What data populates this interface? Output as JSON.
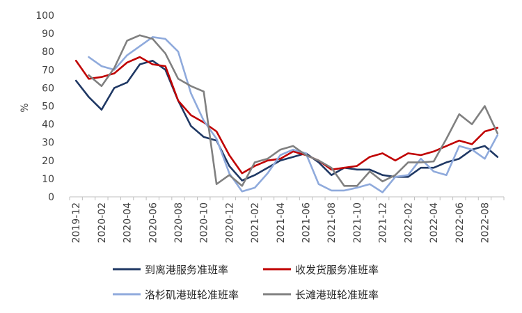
{
  "chart_data": {
    "type": "line",
    "ylabel": "%",
    "ylim": [
      0,
      100
    ],
    "yticks": [
      0,
      10,
      20,
      30,
      40,
      50,
      60,
      70,
      80,
      90,
      100
    ],
    "x": [
      "2019-12",
      "2020-01",
      "2020-02",
      "2020-03",
      "2020-04",
      "2020-05",
      "2020-06",
      "2020-07",
      "2020-08",
      "2020-09",
      "2020-10",
      "2020-11",
      "2020-12",
      "2021-01",
      "2021-02",
      "2021-03",
      "2021-04",
      "2021-05",
      "2021-06",
      "2021-07",
      "2021-08",
      "2021-09",
      "2021-10",
      "2021-11",
      "2021-12",
      "2022-01",
      "2022-02",
      "2022-03",
      "2022-04",
      "2022-05",
      "2022-06",
      "2022-07",
      "2022-08",
      "2022-09"
    ],
    "xtick_labels": [
      "2019-12",
      "2020-02",
      "2020-04",
      "2020-06",
      "2020-08",
      "2020-10",
      "2020-12",
      "2021-02",
      "2021-04",
      "2021-06",
      "2021-08",
      "2021-10",
      "2021-12",
      "2022-02",
      "2022-04",
      "2022-06",
      "2022-08"
    ],
    "grid": false,
    "legend": "bottom",
    "series": [
      {
        "name": "到离港服务准班率",
        "color": "#1f3864",
        "values": [
          64,
          55,
          48,
          60,
          63,
          73,
          75,
          70,
          53,
          39,
          33,
          31,
          17,
          9,
          12,
          16,
          20,
          22,
          24,
          19,
          12,
          16,
          15,
          15,
          12,
          11,
          11,
          16,
          16,
          19,
          21,
          26,
          28,
          22
        ]
      },
      {
        "name": "收发货服务准班率",
        "color": "#c00000",
        "values": [
          75,
          65,
          66,
          68,
          74,
          77,
          73,
          72,
          53,
          45,
          41,
          36,
          23,
          13,
          17,
          20,
          21,
          25,
          23,
          20,
          15,
          16,
          17,
          22,
          24,
          20,
          24,
          23,
          25,
          28,
          31,
          29,
          36,
          38
        ]
      },
      {
        "name": "洛杉矶港班轮准班率",
        "color": "#8faadc",
        "values": [
          null,
          77,
          72,
          70,
          78,
          83,
          88,
          87,
          80,
          57,
          42,
          32,
          13,
          3,
          5,
          13,
          23,
          26,
          24,
          7,
          3.5,
          3.5,
          5,
          7,
          2.5,
          11,
          12,
          21,
          14,
          12,
          28,
          26,
          21,
          34
        ]
      },
      {
        "name": "长滩港班轮准班率",
        "color": "#808080",
        "values": [
          null,
          67,
          61,
          71,
          86,
          89,
          87,
          79,
          65,
          61,
          58,
          7,
          12,
          6,
          19,
          21,
          26,
          28,
          23,
          20,
          16,
          6,
          6,
          14,
          8.5,
          12,
          19,
          19,
          19.5,
          32,
          45.5,
          40,
          50,
          35
        ]
      }
    ]
  }
}
